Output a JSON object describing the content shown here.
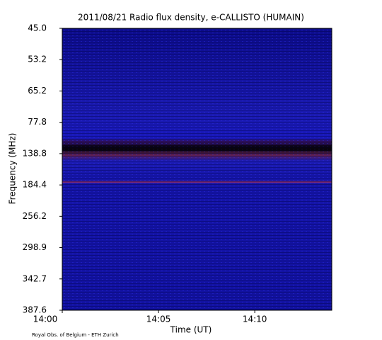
{
  "chart_data": {
    "type": "spectrogram",
    "title": "2011/08/21  Radio flux density, e-CALLISTO (HUMAIN)",
    "xlabel": "Time (UT)",
    "ylabel": "Frequency (MHz)",
    "credit": "Royal Obs. of Belgium - ETH Zurich",
    "xlim": [
      "14:00",
      "14:14"
    ],
    "xticks": [
      "14:00",
      "14:05",
      "14:10"
    ],
    "yticks": [
      {
        "value": 45,
        "label": "45.0"
      },
      {
        "value": 53.2,
        "label": "53.2"
      },
      {
        "value": 65.2,
        "label": "65.2"
      },
      {
        "value": 77.8,
        "label": "77.8"
      },
      {
        "value": 138.8,
        "label": "138.8"
      },
      {
        "value": 184.4,
        "label": "184.4"
      },
      {
        "value": 256.2,
        "label": "256.2"
      },
      {
        "value": 298.9,
        "label": "298.9"
      },
      {
        "value": 342.7,
        "label": "342.7"
      },
      {
        "value": 387.6,
        "label": "387.6"
      }
    ]
  }
}
